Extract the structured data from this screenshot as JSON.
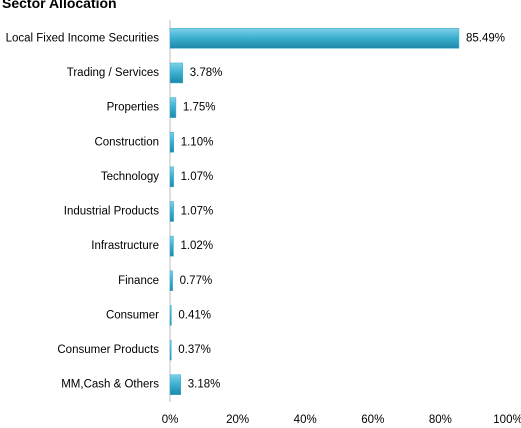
{
  "chart_data": {
    "type": "bar",
    "orientation": "horizontal",
    "title": "Sector Allocation",
    "categories": [
      "Local Fixed Income Securities",
      "Trading / Services",
      "Properties",
      "Construction",
      "Technology",
      "Industrial Products",
      "Infrastructure",
      "Finance",
      "Consumer",
      "Consumer Products",
      "MM,Cash & Others"
    ],
    "values": [
      85.49,
      3.78,
      1.75,
      1.1,
      1.07,
      1.07,
      1.02,
      0.77,
      0.41,
      0.37,
      3.18
    ],
    "value_labels": [
      "85.49%",
      "3.78%",
      "1.75%",
      "1.10%",
      "1.07%",
      "1.07%",
      "1.02%",
      "0.77%",
      "0.41%",
      "0.37%",
      "3.18%"
    ],
    "color": "#3aaed0",
    "xlim": [
      0,
      100
    ],
    "xticks": [
      {
        "value": 0,
        "label": "0%"
      },
      {
        "value": 20,
        "label": "20%"
      },
      {
        "value": 40,
        "label": "40%"
      },
      {
        "value": 60,
        "label": "60%"
      },
      {
        "value": 80,
        "label": "80%"
      },
      {
        "value": 100,
        "label": "100%"
      }
    ],
    "grid": false
  }
}
